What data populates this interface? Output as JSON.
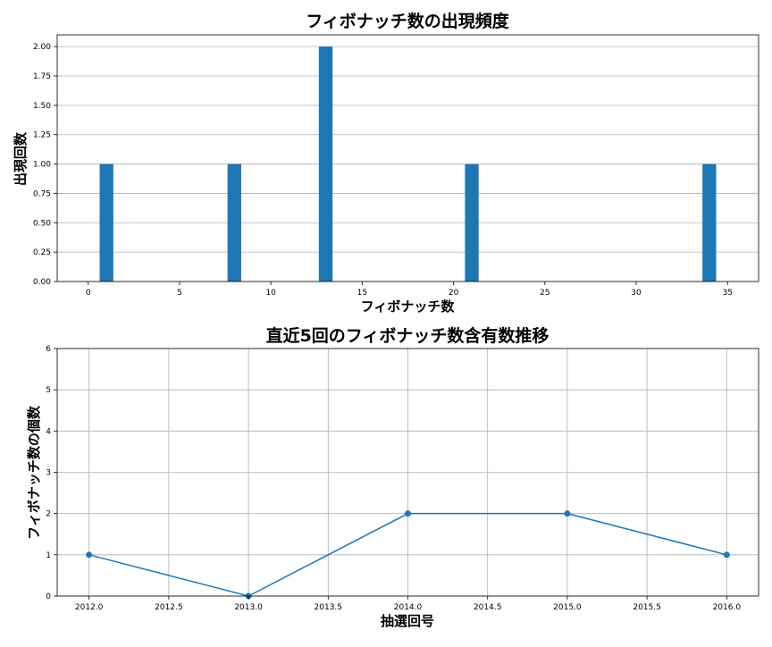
{
  "chart_data": [
    {
      "type": "bar",
      "title": "フィボナッチ数の出現頻度",
      "xlabel": "フィボナッチ数",
      "ylabel": "出現回数",
      "x": [
        1,
        8,
        13,
        21,
        34
      ],
      "values": [
        1,
        1,
        2,
        1,
        1
      ],
      "xlim": [
        -1.7,
        36.7
      ],
      "ylim": [
        0,
        2.1
      ],
      "xticks": [
        0,
        5,
        10,
        15,
        20,
        25,
        30,
        35
      ],
      "yticks": [
        0,
        0.25,
        0.5,
        0.75,
        1.0,
        1.25,
        1.5,
        1.75,
        2.0
      ],
      "xtick_labels": [
        "0",
        "5",
        "10",
        "15",
        "20",
        "25",
        "30",
        "35"
      ],
      "ytick_labels": [
        "0.00",
        "0.25",
        "0.50",
        "0.75",
        "1.00",
        "1.25",
        "1.50",
        "1.75",
        "2.00"
      ],
      "grid": "y",
      "bar_color": "#1f77b4"
    },
    {
      "type": "line",
      "title": "直近5回のフィボナッチ数含有数推移",
      "xlabel": "抽選回号",
      "ylabel": "フィボナッチ数の個数",
      "x": [
        2012,
        2013,
        2014,
        2015,
        2016
      ],
      "values": [
        1,
        0,
        2,
        2,
        1
      ],
      "xlim": [
        2011.8,
        2016.2
      ],
      "ylim": [
        0,
        6
      ],
      "xticks": [
        2012,
        2012.5,
        2013,
        2013.5,
        2014,
        2014.5,
        2015,
        2015.5,
        2016
      ],
      "yticks": [
        0,
        1,
        2,
        3,
        4,
        5,
        6
      ],
      "xtick_labels": [
        "2012.0",
        "2012.5",
        "2013.0",
        "2013.5",
        "2014.0",
        "2014.5",
        "2015.0",
        "2015.5",
        "2016.0"
      ],
      "ytick_labels": [
        "0",
        "1",
        "2",
        "3",
        "4",
        "5",
        "6"
      ],
      "grid": "both",
      "marker": "circle",
      "line_color": "#1f77b4"
    }
  ]
}
